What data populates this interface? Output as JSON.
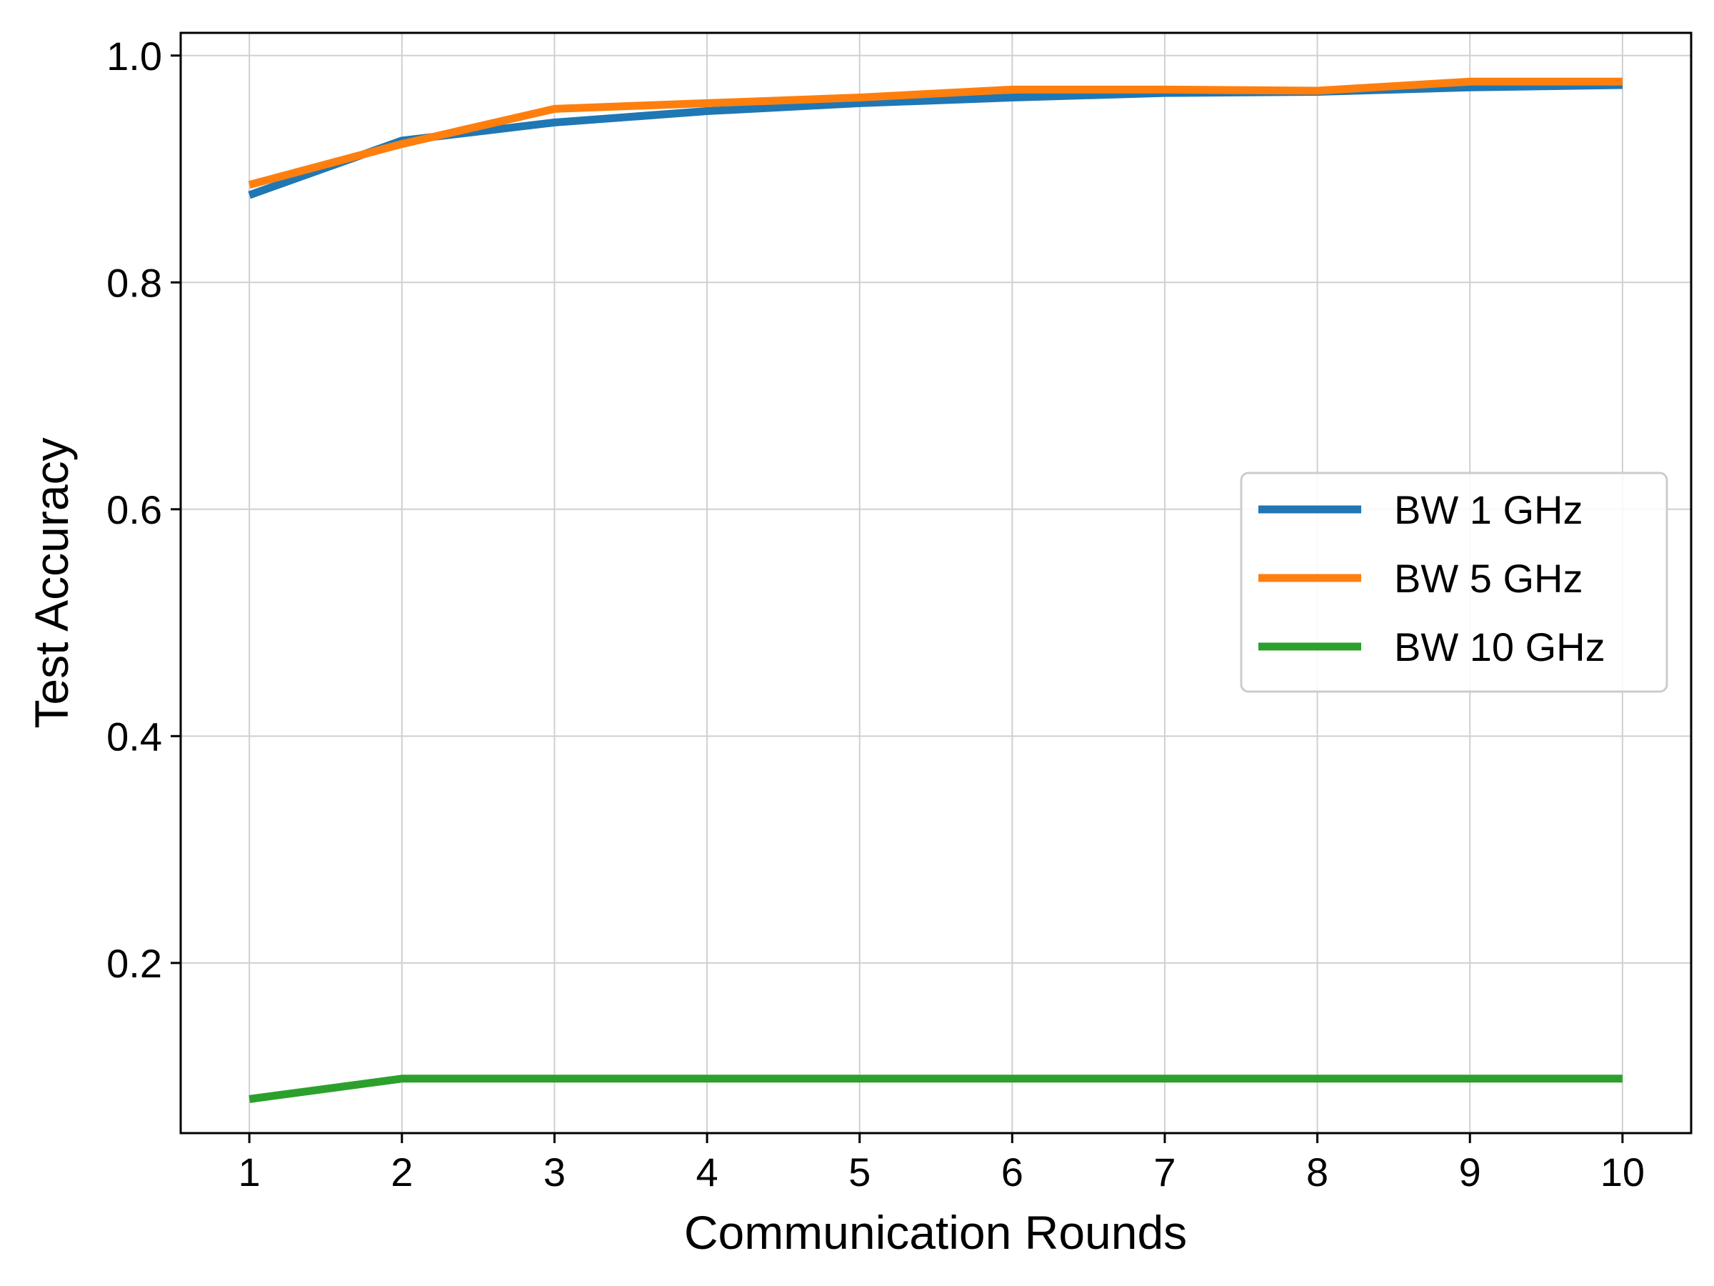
{
  "chart_data": {
    "type": "line",
    "title": "",
    "xlabel": "Communication Rounds",
    "ylabel": "Test Accuracy",
    "x": [
      1,
      2,
      3,
      4,
      5,
      6,
      7,
      8,
      9,
      10
    ],
    "xticks": [
      "1",
      "2",
      "3",
      "4",
      "5",
      "6",
      "7",
      "8",
      "9",
      "10"
    ],
    "yticks": [
      "0.2",
      "0.4",
      "0.6",
      "0.8",
      "1.0"
    ],
    "xlim": [
      0.55,
      10.45
    ],
    "ylim": [
      0.05,
      1.02
    ],
    "grid": true,
    "legend_position": "center-right",
    "series": [
      {
        "name": "BW 1 GHz",
        "color": "#1f77b4",
        "values": [
          0.877,
          0.925,
          0.941,
          0.951,
          0.958,
          0.963,
          0.967,
          0.968,
          0.972,
          0.974
        ]
      },
      {
        "name": "BW 5 GHz",
        "color": "#ff7f0e",
        "values": [
          0.886,
          0.922,
          0.953,
          0.958,
          0.963,
          0.97,
          0.97,
          0.969,
          0.977,
          0.977
        ]
      },
      {
        "name": "BW 10 GHz",
        "color": "#2ca02c",
        "values": [
          0.08,
          0.098,
          0.098,
          0.098,
          0.098,
          0.098,
          0.098,
          0.098,
          0.098,
          0.098
        ]
      }
    ]
  }
}
